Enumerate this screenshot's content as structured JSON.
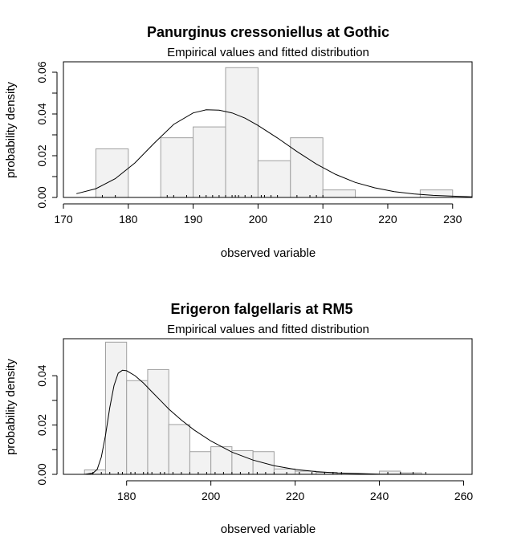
{
  "chart_data": [
    {
      "type": "histogram",
      "title": "Panurginus cressoniellus at Gothic",
      "subtitle": "Empirical values and fitted distribution",
      "xlabel": "observed variable",
      "ylabel": "probability density",
      "xlim": [
        170,
        233
      ],
      "ylim": [
        0,
        0.065
      ],
      "xticks": [
        170,
        180,
        190,
        200,
        210,
        220,
        230
      ],
      "yticks": [
        0.0,
        0.02,
        0.04,
        0.06
      ],
      "ytick_labels": [
        "0.00",
        "0.02",
        "0.04",
        "0.06"
      ],
      "bins": [
        {
          "x0": 175,
          "x1": 180,
          "density": 0.0233
        },
        {
          "x0": 180,
          "x1": 185,
          "density": 0.0
        },
        {
          "x0": 185,
          "x1": 190,
          "density": 0.0286
        },
        {
          "x0": 190,
          "x1": 195,
          "density": 0.0338
        },
        {
          "x0": 195,
          "x1": 200,
          "density": 0.0622
        },
        {
          "x0": 200,
          "x1": 205,
          "density": 0.0176
        },
        {
          "x0": 205,
          "x1": 210,
          "density": 0.0286
        },
        {
          "x0": 210,
          "x1": 215,
          "density": 0.0036
        },
        {
          "x0": 215,
          "x1": 220,
          "density": 0.0
        },
        {
          "x0": 220,
          "x1": 225,
          "density": 0.0
        },
        {
          "x0": 225,
          "x1": 230,
          "density": 0.0036
        }
      ],
      "fitted_curve": {
        "x": [
          172,
          175,
          178,
          181,
          184,
          187,
          190,
          192,
          194,
          196,
          198,
          200,
          203,
          206,
          209,
          212,
          215,
          218,
          221,
          224,
          227,
          230,
          233
        ],
        "y": [
          0.0018,
          0.0042,
          0.009,
          0.0165,
          0.026,
          0.035,
          0.0405,
          0.042,
          0.0418,
          0.0405,
          0.038,
          0.0345,
          0.0285,
          0.022,
          0.016,
          0.011,
          0.0072,
          0.0046,
          0.0028,
          0.0017,
          0.001,
          0.0006,
          0.0003
        ]
      },
      "rug": [
        176,
        178,
        186,
        187,
        189,
        191,
        192,
        193,
        194,
        195,
        196,
        196.5,
        197,
        198,
        199,
        200.5,
        201,
        202,
        203,
        206,
        208,
        209,
        210
      ]
    },
    {
      "type": "histogram",
      "title": "Erigeron falgellaris at RM5",
      "subtitle": "Empirical values and fitted distribution",
      "xlabel": "observed variable",
      "ylabel": "probability density",
      "xlim": [
        165,
        262
      ],
      "ylim": [
        0,
        0.055
      ],
      "xticks": [
        180,
        200,
        220,
        240,
        260
      ],
      "yticks": [
        0.0,
        0.02,
        0.04
      ],
      "ytick_labels": [
        "0.00",
        "0.02",
        "0.04"
      ],
      "bins": [
        {
          "x0": 170,
          "x1": 175,
          "density": 0.0018
        },
        {
          "x0": 175,
          "x1": 180,
          "density": 0.0536
        },
        {
          "x0": 180,
          "x1": 185,
          "density": 0.038
        },
        {
          "x0": 185,
          "x1": 190,
          "density": 0.0425
        },
        {
          "x0": 190,
          "x1": 195,
          "density": 0.0202
        },
        {
          "x0": 195,
          "x1": 200,
          "density": 0.0092
        },
        {
          "x0": 200,
          "x1": 205,
          "density": 0.0112
        },
        {
          "x0": 205,
          "x1": 210,
          "density": 0.0096
        },
        {
          "x0": 210,
          "x1": 215,
          "density": 0.0092
        },
        {
          "x0": 215,
          "x1": 220,
          "density": 0.0022
        },
        {
          "x0": 220,
          "x1": 225,
          "density": 0.0013
        },
        {
          "x0": 225,
          "x1": 230,
          "density": 0.0008
        },
        {
          "x0": 230,
          "x1": 235,
          "density": 0.0
        },
        {
          "x0": 235,
          "x1": 240,
          "density": 0.0
        },
        {
          "x0": 240,
          "x1": 245,
          "density": 0.0013
        },
        {
          "x0": 245,
          "x1": 250,
          "density": 0.0006
        }
      ],
      "fitted_curve": {
        "x": [
          166,
          170,
          172,
          173,
          174,
          175,
          176,
          177,
          178,
          179,
          180,
          182,
          184,
          186,
          188,
          190,
          193,
          196,
          200,
          205,
          210,
          215,
          220,
          225,
          230,
          240,
          250,
          259
        ],
        "y": [
          0.0,
          0.0,
          0.0005,
          0.002,
          0.007,
          0.016,
          0.027,
          0.036,
          0.041,
          0.0422,
          0.042,
          0.04,
          0.037,
          0.0335,
          0.03,
          0.0265,
          0.022,
          0.018,
          0.0135,
          0.009,
          0.0058,
          0.0035,
          0.002,
          0.0011,
          0.0006,
          0.0001,
          0.0,
          0.0
        ]
      },
      "rug": [
        172,
        174,
        176,
        178,
        179,
        181,
        182,
        184,
        185,
        186,
        188,
        189,
        191,
        193,
        195,
        197,
        199,
        201,
        203,
        205,
        207,
        209,
        211,
        213,
        215,
        218,
        221,
        224,
        227,
        229,
        231,
        242,
        245,
        248,
        251
      ]
    }
  ]
}
